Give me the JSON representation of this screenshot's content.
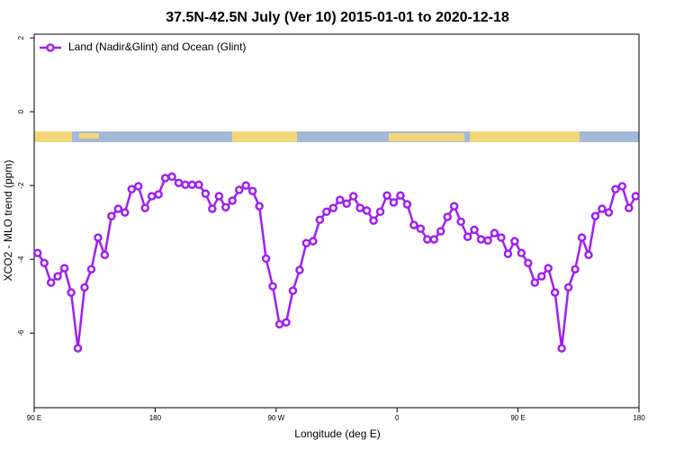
{
  "chart_data": {
    "type": "line",
    "title": "37.5N-42.5N July (Ver 10)   2015-01-01 to 2020-12-18",
    "x_label": "Longitude (deg E)",
    "y_label": "XCO2 - MLO trend (ppm)",
    "xlim": [
      90,
      540
    ],
    "ylim": [
      -8.02,
      2.1
    ],
    "xticks": [
      {
        "value": 90,
        "label": "90 E"
      },
      180,
      {
        "value": 270,
        "label": "90 W"
      },
      {
        "value": 360,
        "label": "0"
      },
      {
        "value": 450,
        "label": "90 E"
      },
      {
        "value": 540,
        "label": "180"
      }
    ],
    "yticks": [
      2,
      0,
      -2,
      -4,
      -6
    ],
    "legend": "top-left",
    "x": [
      92.5,
      97.5,
      102.5,
      107.5,
      112.5,
      117.5,
      122.5,
      127.5,
      132.5,
      137.5,
      142.5,
      147.5,
      152.5,
      157.5,
      162.5,
      167.5,
      172.5,
      177.5,
      182.5,
      187.5,
      192.5,
      197.5,
      202.5,
      207.5,
      212.5,
      217.5,
      222.5,
      227.5,
      232.5,
      237.5,
      242.5,
      247.5,
      252.5,
      257.5,
      262.5,
      267.5,
      272.5,
      277.5,
      282.5,
      287.5,
      292.5,
      297.5,
      302.5,
      307.5,
      312.5,
      317.5,
      322.5,
      327.5,
      332.5,
      337.5,
      342.5,
      347.5,
      352.5,
      357.5,
      362.5,
      367.5,
      372.5,
      377.5,
      382.5,
      387.5,
      392.5,
      397.5,
      402.5,
      407.5,
      412.5,
      417.5,
      422.5,
      427.5,
      432.5,
      437.5,
      442.5,
      447.5,
      452.5,
      457.5,
      462.5,
      467.5,
      472.5,
      477.5,
      482.5,
      487.5,
      492.5,
      497.5,
      502.5,
      507.5,
      512.5,
      517.5,
      522.5,
      527.5,
      532.5,
      537.5
    ],
    "series": [
      {
        "name": "Land (Nadir&Glint) and Ocean (Glint)",
        "color": "#a020f0",
        "values": [
          -3.83,
          -4.1,
          -4.63,
          -4.46,
          -4.24,
          -4.9,
          -6.41,
          -4.76,
          -4.27,
          -3.41,
          -3.88,
          -2.83,
          -2.63,
          -2.73,
          -2.1,
          -2.02,
          -2.61,
          -2.29,
          -2.24,
          -1.8,
          -1.76,
          -1.93,
          -1.98,
          -1.98,
          -1.98,
          -2.22,
          -2.63,
          -2.29,
          -2.59,
          -2.41,
          -2.12,
          -2.0,
          -2.15,
          -2.56,
          -3.98,
          -4.73,
          -5.76,
          -5.71,
          -4.85,
          -4.29,
          -3.56,
          -3.51,
          -2.93,
          -2.71,
          -2.61,
          -2.39,
          -2.49,
          -2.29,
          -2.61,
          -2.68,
          -2.95,
          -2.71,
          -2.27,
          -2.46,
          -2.27,
          -2.51,
          -3.07,
          -3.17,
          -3.46,
          -3.46,
          -3.24,
          -2.85,
          -2.56,
          -2.98,
          -3.39,
          -3.2,
          -3.46,
          -3.49,
          -3.29,
          -3.41,
          -3.85,
          -3.51,
          -3.83,
          -4.1,
          -4.63,
          -4.46,
          -4.24,
          -4.9,
          -6.41,
          -4.76,
          -4.27,
          -3.41,
          -3.88,
          -2.83,
          -2.63,
          -2.73,
          -2.1,
          -2.02,
          -2.61,
          -2.29
        ]
      }
    ]
  }
}
